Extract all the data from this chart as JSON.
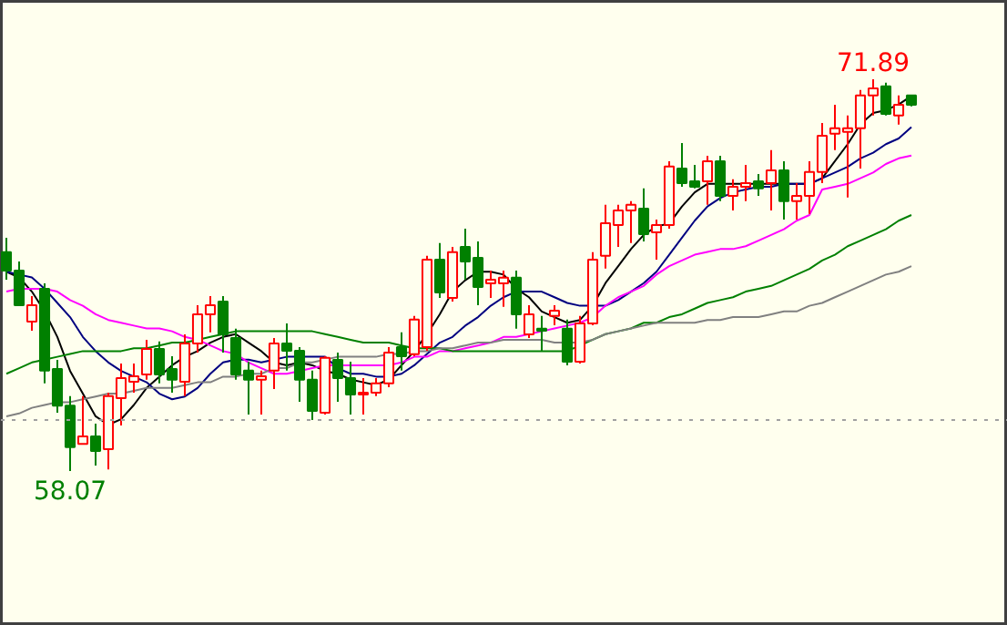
{
  "chart_data": {
    "type": "candlestick",
    "categories": [
      null,
      null,
      null,
      null,
      null,
      null,
      null,
      null,
      null,
      null,
      null,
      null,
      null,
      null,
      null,
      null,
      null,
      null,
      null,
      null,
      null,
      null,
      null,
      null,
      null,
      null,
      null,
      null,
      null,
      null,
      null,
      null,
      null,
      null,
      null,
      null,
      null,
      null,
      null,
      null,
      null,
      null,
      null,
      null,
      null,
      null,
      null,
      null,
      null,
      null,
      null,
      null,
      null,
      null,
      null,
      null,
      null,
      null,
      null,
      null,
      null,
      null,
      null,
      null,
      null,
      null,
      null,
      null,
      null,
      null,
      null,
      null
    ],
    "ohlc": [
      [
        65.79,
        66.3,
        64.82,
        65.14
      ],
      [
        65.14,
        65.46,
        63.92,
        63.92
      ],
      [
        63.34,
        64.24,
        63.02,
        63.92
      ],
      [
        64.5,
        64.69,
        61.16,
        61.61
      ],
      [
        61.67,
        61.99,
        60.13,
        60.38
      ],
      [
        60.38,
        60.71,
        58.07,
        58.91
      ],
      [
        59.03,
        60.71,
        59.03,
        59.29
      ],
      [
        59.29,
        59.74,
        58.26,
        58.78
      ],
      [
        58.84,
        60.83,
        58.13,
        60.71
      ],
      [
        60.64,
        61.86,
        59.68,
        61.35
      ],
      [
        61.22,
        61.86,
        60.83,
        61.41
      ],
      [
        61.48,
        62.7,
        61.29,
        62.38
      ],
      [
        62.38,
        62.64,
        61.16,
        61.48
      ],
      [
        61.67,
        62.12,
        60.83,
        61.29
      ],
      [
        61.22,
        62.89,
        60.71,
        62.57
      ],
      [
        62.57,
        63.92,
        62.25,
        63.6
      ],
      [
        63.6,
        64.24,
        62.96,
        63.92
      ],
      [
        64.05,
        64.24,
        62.25,
        62.89
      ],
      [
        62.76,
        63.09,
        61.29,
        61.48
      ],
      [
        61.61,
        61.93,
        60.06,
        61.29
      ],
      [
        61.29,
        61.61,
        60.06,
        61.41
      ],
      [
        61.61,
        62.76,
        60.96,
        62.57
      ],
      [
        62.57,
        63.28,
        61.61,
        62.31
      ],
      [
        62.31,
        62.44,
        60.51,
        61.29
      ],
      [
        61.29,
        61.61,
        59.87,
        60.19
      ],
      [
        60.13,
        62.12,
        60.06,
        62.06
      ],
      [
        61.99,
        62.25,
        60.51,
        61.35
      ],
      [
        61.35,
        61.93,
        60.06,
        60.77
      ],
      [
        60.77,
        61.35,
        60.06,
        60.83
      ],
      [
        60.83,
        61.35,
        60.71,
        61.16
      ],
      [
        61.16,
        62.44,
        61.03,
        62.25
      ],
      [
        62.44,
        62.96,
        61.61,
        62.12
      ],
      [
        62.19,
        63.54,
        62.12,
        63.41
      ],
      [
        62.44,
        65.66,
        62.31,
        65.53
      ],
      [
        65.53,
        66.11,
        64.18,
        64.37
      ],
      [
        64.18,
        65.98,
        64.05,
        65.79
      ],
      [
        65.98,
        66.62,
        64.82,
        65.46
      ],
      [
        65.59,
        66.17,
        63.92,
        64.56
      ],
      [
        64.69,
        65.14,
        64.18,
        64.82
      ],
      [
        64.69,
        65.14,
        63.86,
        64.89
      ],
      [
        64.89,
        65.14,
        63.09,
        63.6
      ],
      [
        62.89,
        63.92,
        62.76,
        63.6
      ],
      [
        63.09,
        63.54,
        62.31,
        63.02
      ],
      [
        63.54,
        63.92,
        63.21,
        63.73
      ],
      [
        63.09,
        63.41,
        61.8,
        61.93
      ],
      [
        61.93,
        63.54,
        61.86,
        63.28
      ],
      [
        63.28,
        65.79,
        63.21,
        65.53
      ],
      [
        65.66,
        67.46,
        65.21,
        66.81
      ],
      [
        66.75,
        67.46,
        65.98,
        67.26
      ],
      [
        67.26,
        67.59,
        66.11,
        67.46
      ],
      [
        67.33,
        68.04,
        66.17,
        66.43
      ],
      [
        66.49,
        66.94,
        65.53,
        66.75
      ],
      [
        66.75,
        69.0,
        66.62,
        68.81
      ],
      [
        68.74,
        69.64,
        68.1,
        68.23
      ],
      [
        68.29,
        68.87,
        68.04,
        68.1
      ],
      [
        68.29,
        69.19,
        67.46,
        69.0
      ],
      [
        69.0,
        69.19,
        67.59,
        67.78
      ],
      [
        67.78,
        68.36,
        67.26,
        68.1
      ],
      [
        68.1,
        68.87,
        67.59,
        68.23
      ],
      [
        68.29,
        68.55,
        67.78,
        68.04
      ],
      [
        68.23,
        69.39,
        67.26,
        68.68
      ],
      [
        68.68,
        69.0,
        66.94,
        67.59
      ],
      [
        67.59,
        68.23,
        66.94,
        67.78
      ],
      [
        67.78,
        69.0,
        67.14,
        68.62
      ],
      [
        68.62,
        70.35,
        68.23,
        69.9
      ],
      [
        69.97,
        70.99,
        69.39,
        70.16
      ],
      [
        70.03,
        70.61,
        67.72,
        70.16
      ],
      [
        70.16,
        71.51,
        68.74,
        71.32
      ],
      [
        71.32,
        71.89,
        70.61,
        71.57
      ],
      [
        71.64,
        71.77,
        70.61,
        70.67
      ],
      [
        70.61,
        71.32,
        70.29,
        70.99
      ],
      [
        71.32,
        71.32,
        70.93,
        70.99
      ]
    ],
    "series": [
      {
        "type": "line",
        "color": "#000000",
        "values": [
          65.1,
          64.9,
          64.4,
          63.7,
          62.8,
          61.6,
          60.8,
          60.0,
          59.7,
          59.9,
          60.4,
          61.0,
          61.4,
          61.8,
          62.1,
          62.3,
          62.6,
          62.8,
          62.9,
          62.6,
          62.3,
          61.9,
          61.8,
          61.9,
          61.8,
          61.6,
          61.5,
          61.3,
          61.2,
          61.1,
          61.3,
          61.8,
          62.3,
          62.9,
          63.6,
          64.4,
          64.8,
          65.1,
          65.1,
          65.0,
          64.5,
          64.2,
          63.7,
          63.5,
          63.3,
          63.4,
          63.9,
          64.7,
          65.3,
          65.9,
          66.4,
          66.7,
          66.8,
          67.4,
          67.9,
          68.2,
          68.2,
          68.2,
          68.2,
          68.2,
          68.2,
          68.2,
          68.2,
          68.2,
          68.4,
          69.0,
          69.6,
          70.3,
          70.7,
          70.8,
          71.0,
          71.3
        ]
      },
      {
        "type": "line",
        "color": "#000080",
        "values": [
          65.1,
          65.0,
          64.9,
          64.5,
          64.0,
          63.5,
          62.8,
          62.3,
          61.9,
          61.6,
          61.4,
          61.2,
          60.8,
          60.6,
          60.7,
          61.0,
          61.5,
          61.9,
          62.0,
          62.0,
          61.9,
          62.0,
          62.1,
          62.1,
          62.1,
          62.1,
          61.7,
          61.5,
          61.5,
          61.4,
          61.4,
          61.5,
          61.8,
          62.2,
          62.6,
          62.8,
          63.2,
          63.5,
          63.9,
          64.2,
          64.4,
          64.4,
          64.4,
          64.2,
          64.0,
          63.9,
          63.9,
          63.9,
          64.1,
          64.4,
          64.7,
          65.1,
          65.7,
          66.3,
          66.9,
          67.4,
          67.7,
          67.9,
          68.0,
          68.1,
          68.1,
          68.2,
          68.2,
          68.2,
          68.4,
          68.6,
          68.8,
          69.1,
          69.3,
          69.6,
          69.8,
          70.2
        ]
      },
      {
        "type": "line",
        "color": "#ff00ff",
        "values": [
          64.4,
          64.5,
          64.5,
          64.5,
          64.4,
          64.1,
          63.9,
          63.6,
          63.4,
          63.3,
          63.2,
          63.1,
          63.1,
          63.0,
          62.8,
          62.7,
          62.5,
          62.3,
          62.2,
          61.9,
          61.7,
          61.5,
          61.5,
          61.6,
          61.7,
          61.8,
          61.8,
          61.8,
          61.8,
          61.8,
          61.8,
          61.9,
          62.1,
          62.1,
          62.3,
          62.3,
          62.4,
          62.5,
          62.6,
          62.8,
          62.8,
          62.9,
          63.0,
          63.1,
          63.2,
          63.3,
          63.5,
          63.9,
          64.2,
          64.4,
          64.6,
          65.0,
          65.3,
          65.5,
          65.7,
          65.8,
          65.9,
          65.9,
          66.0,
          66.2,
          66.4,
          66.6,
          66.9,
          67.1,
          68.0,
          68.1,
          68.2,
          68.4,
          68.6,
          68.9,
          69.1,
          69.2
        ]
      },
      {
        "type": "line",
        "color": "#008000",
        "values": [
          61.5,
          61.7,
          61.9,
          62.0,
          62.1,
          62.2,
          62.3,
          62.3,
          62.3,
          62.3,
          62.4,
          62.4,
          62.5,
          62.6,
          62.6,
          62.7,
          62.8,
          62.9,
          63.0,
          63.0,
          63.0,
          63.0,
          63.0,
          63.0,
          63.0,
          62.9,
          62.8,
          62.7,
          62.6,
          62.6,
          62.6,
          62.5,
          62.4,
          62.4,
          62.4,
          62.3,
          62.3,
          62.3,
          62.3,
          62.3,
          62.3,
          62.3,
          62.3,
          62.3,
          62.3,
          62.5,
          62.7,
          62.9,
          63.0,
          63.1,
          63.3,
          63.3,
          63.5,
          63.6,
          63.8,
          64.0,
          64.1,
          64.2,
          64.4,
          64.5,
          64.6,
          64.8,
          65.0,
          65.2,
          65.5,
          65.7,
          66.0,
          66.2,
          66.4,
          66.6,
          66.9,
          67.1
        ]
      },
      {
        "type": "line",
        "color": "#808080",
        "values": [
          60.0,
          60.1,
          60.3,
          60.4,
          60.5,
          60.5,
          60.6,
          60.7,
          60.8,
          60.8,
          60.9,
          61.0,
          61.0,
          61.0,
          61.1,
          61.2,
          61.2,
          61.4,
          61.4,
          61.5,
          61.5,
          61.7,
          61.7,
          61.9,
          61.9,
          62.0,
          62.1,
          62.1,
          62.1,
          62.1,
          62.2,
          62.2,
          62.3,
          62.3,
          62.4,
          62.4,
          62.5,
          62.6,
          62.6,
          62.7,
          62.7,
          62.7,
          62.7,
          62.6,
          62.6,
          62.6,
          62.7,
          62.9,
          63.0,
          63.1,
          63.2,
          63.3,
          63.3,
          63.3,
          63.3,
          63.4,
          63.4,
          63.5,
          63.5,
          63.5,
          63.6,
          63.7,
          63.7,
          63.9,
          64.0,
          64.2,
          64.4,
          64.6,
          64.8,
          65.0,
          65.1,
          65.3
        ]
      }
    ],
    "ref_lines": [
      {
        "axis": "y",
        "value": 59.87,
        "color": "#a0a0a0",
        "line_style": "dotted"
      }
    ],
    "annotations": [
      {
        "text": "71.89",
        "y": 71.89
      },
      {
        "text": "58.07",
        "y": 58.07
      }
    ]
  }
}
